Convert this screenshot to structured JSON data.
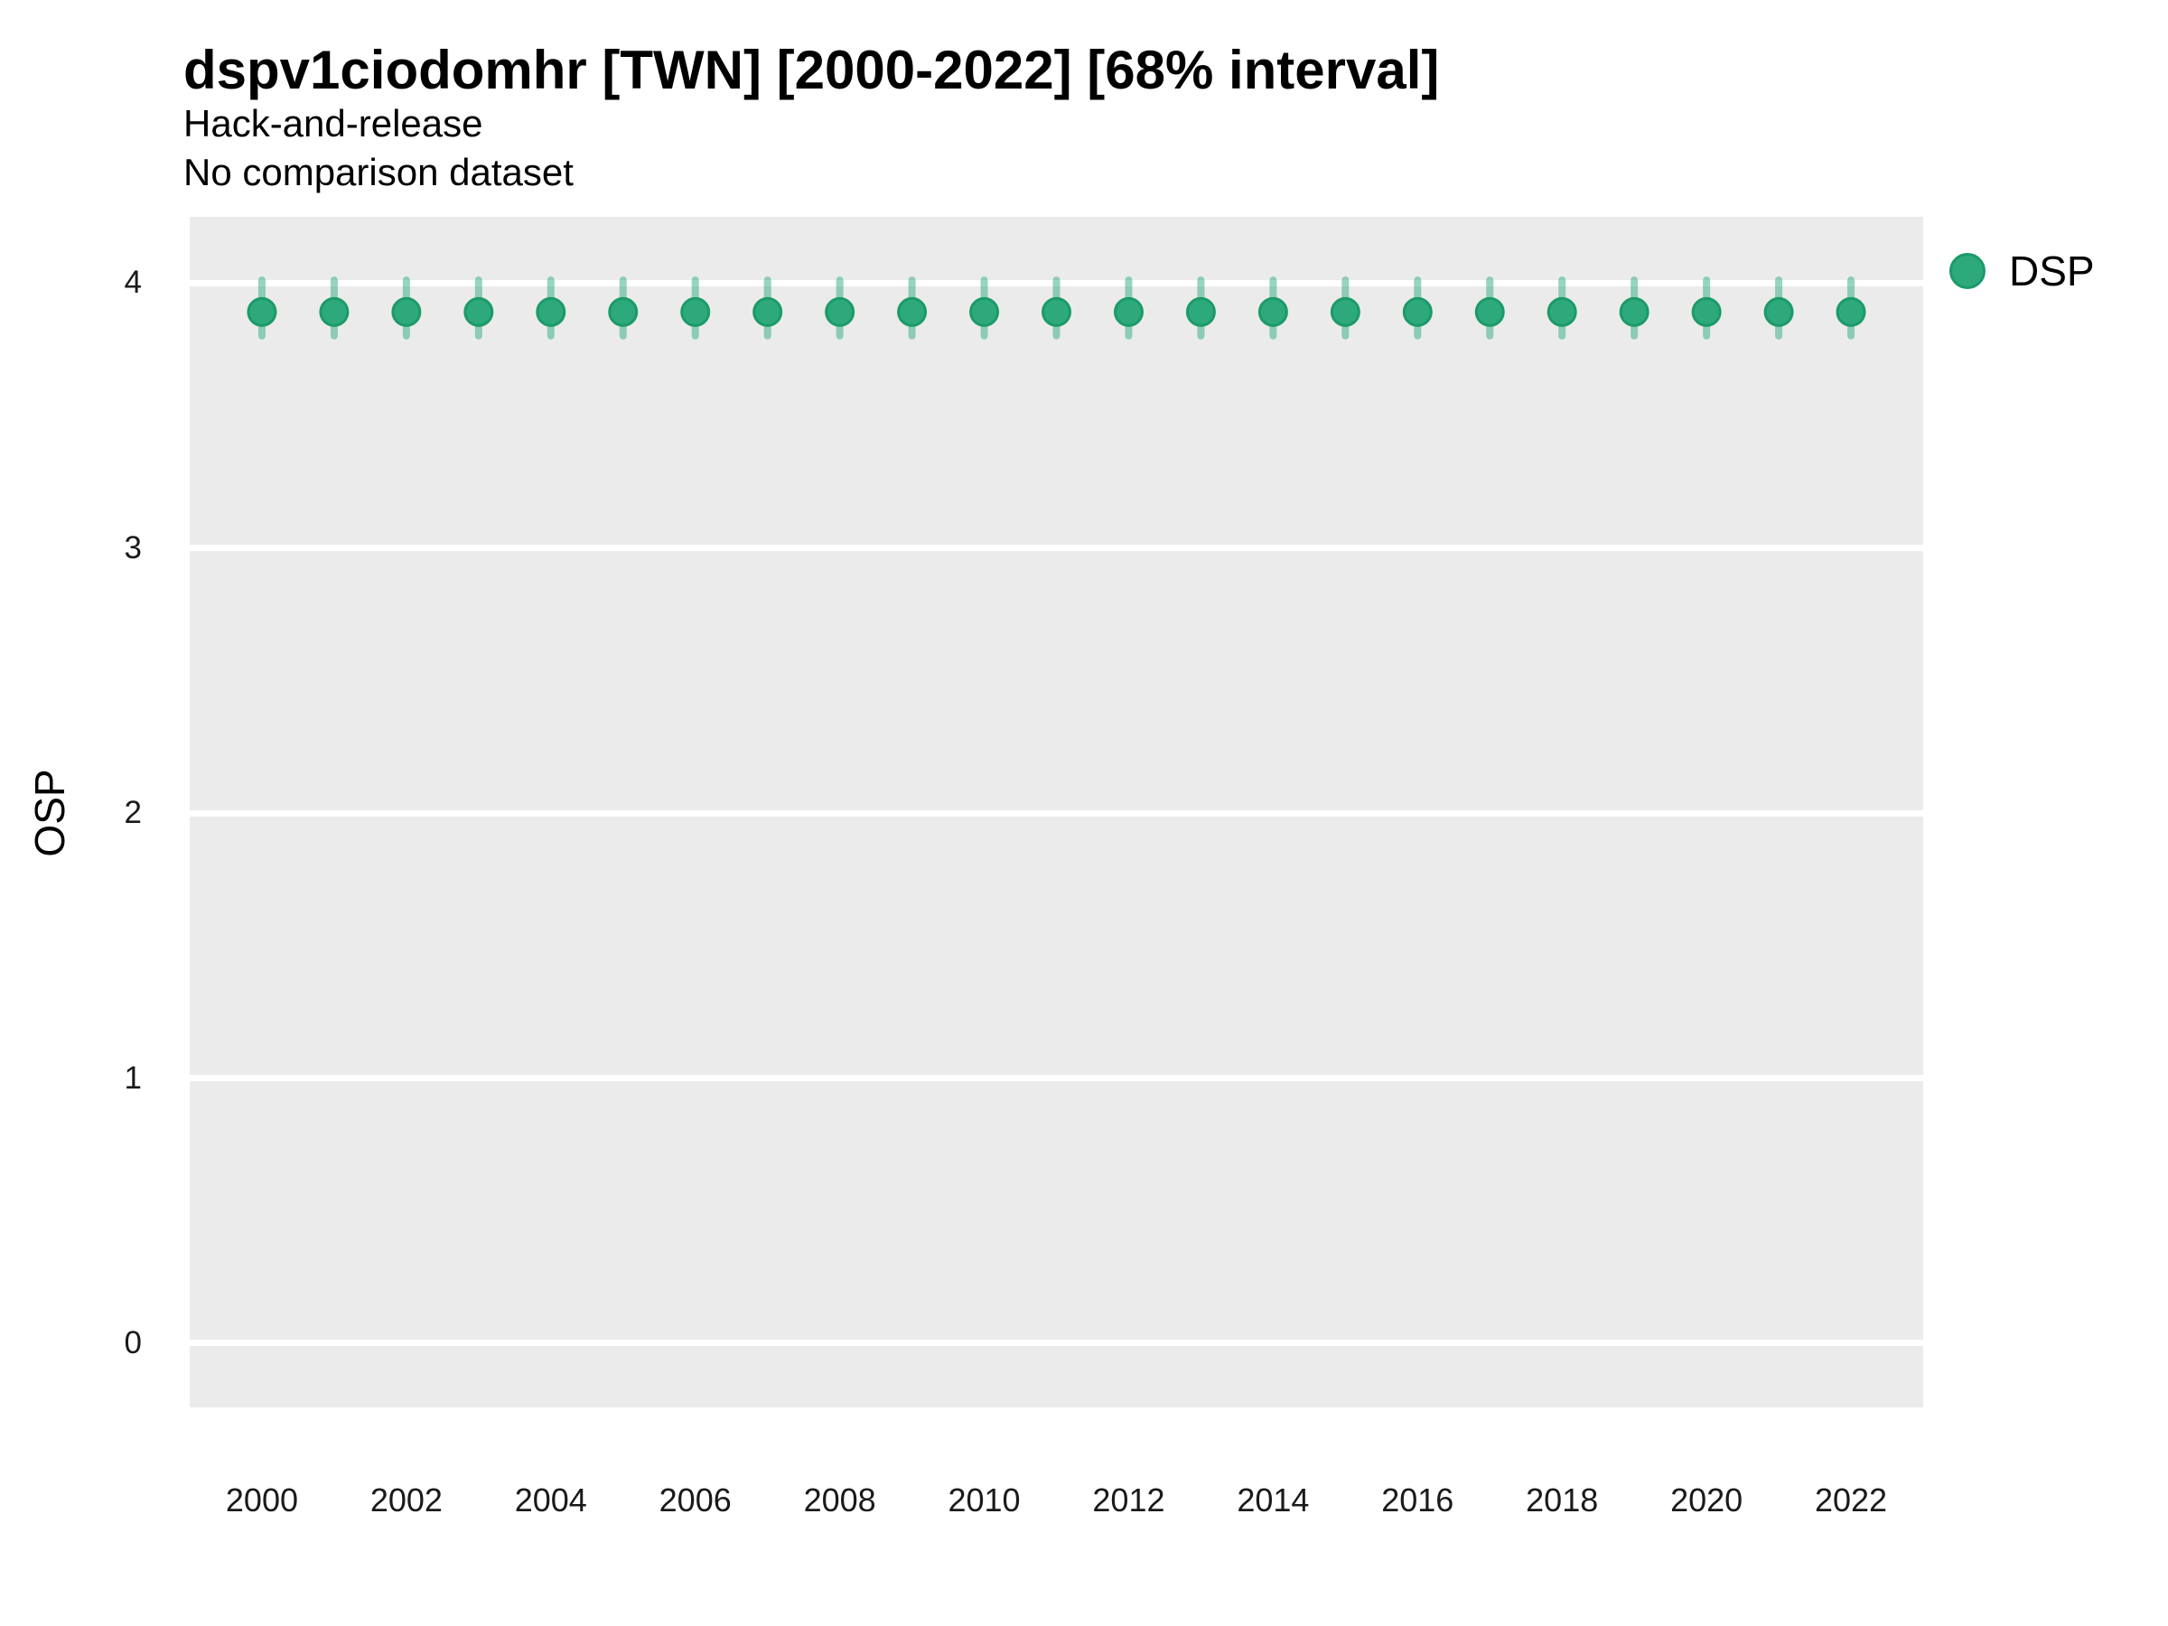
{
  "header": {
    "title": "dspv1ciodomhr [TWN] [2000-2022] [68% interval]",
    "subtitle_line1": "Hack-and-release",
    "subtitle_line2": "No comparison dataset"
  },
  "legend": {
    "position": "right-top",
    "items": [
      {
        "label": "DSP",
        "color": "#2DA97B"
      }
    ]
  },
  "chart_data": {
    "type": "scatter",
    "title": "dspv1ciodomhr [TWN] [2000-2022] [68% interval]",
    "subtitle": [
      "Hack-and-release",
      "No comparison dataset"
    ],
    "xlabel": "",
    "ylabel": "OSP",
    "x": [
      2000,
      2001,
      2002,
      2003,
      2004,
      2005,
      2006,
      2007,
      2008,
      2009,
      2010,
      2011,
      2012,
      2013,
      2014,
      2015,
      2016,
      2017,
      2018,
      2019,
      2020,
      2021,
      2022
    ],
    "series": [
      {
        "name": "DSP",
        "values": [
          3.89,
          3.89,
          3.89,
          3.89,
          3.89,
          3.89,
          3.89,
          3.89,
          3.89,
          3.89,
          3.89,
          3.89,
          3.89,
          3.89,
          3.89,
          3.89,
          3.89,
          3.89,
          3.89,
          3.89,
          3.89,
          3.89,
          3.89
        ],
        "interval_68_lower": [
          3.8,
          3.8,
          3.8,
          3.8,
          3.8,
          3.8,
          3.8,
          3.8,
          3.8,
          3.8,
          3.8,
          3.8,
          3.8,
          3.8,
          3.8,
          3.8,
          3.8,
          3.8,
          3.8,
          3.8,
          3.8,
          3.8,
          3.8
        ],
        "interval_68_upper": [
          4.01,
          4.01,
          4.01,
          4.01,
          4.01,
          4.01,
          4.01,
          4.01,
          4.01,
          4.01,
          4.01,
          4.01,
          4.01,
          4.01,
          4.01,
          4.01,
          4.01,
          4.01,
          4.01,
          4.01,
          4.01,
          4.01,
          4.01
        ]
      }
    ],
    "interval_label": "68% interval",
    "xlim": [
      1999,
      2023
    ],
    "ylim": [
      -0.242,
      4.249
    ],
    "yticks": [
      0,
      1,
      2,
      3,
      4
    ],
    "xticks": [
      2000,
      2002,
      2004,
      2006,
      2008,
      2010,
      2012,
      2014,
      2016,
      2018,
      2020,
      2022
    ],
    "grid": "horizontal-major-only",
    "legend_position": "right-top",
    "colors": {
      "panel_background": "#EBEBEB",
      "gridline": "#FFFFFF",
      "point_fill": "#2DA97B",
      "point_stroke": "#1C9A69",
      "errorbar": "rgba(46,171,125,0.5)",
      "text": "#000000",
      "tick_text": "#1a1a1a"
    }
  }
}
